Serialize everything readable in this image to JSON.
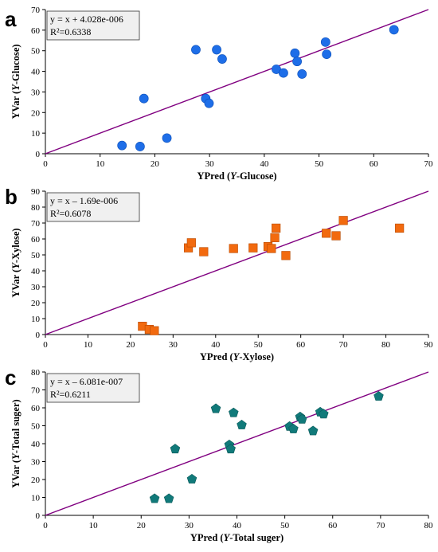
{
  "colors": {
    "regression_line": "#800080",
    "panel_a_marker": "#1e6ee8",
    "panel_b_marker": "#f26a0f",
    "panel_c_marker": "#117a7a",
    "equation_box_fill": "#f0f0f0"
  },
  "chart_data": [
    {
      "type": "scatter",
      "panel_label": "a",
      "marker": "circle",
      "xlabel_pre": "YPred (",
      "xlabel_ital": "Y",
      "xlabel_post": "-Glucose)",
      "ylabel_pre": "YVar (",
      "ylabel_ital": "Y",
      "ylabel_post": "-Glucose)",
      "xlim": [
        0,
        70
      ],
      "ylim": [
        0,
        70
      ],
      "xticks": [
        0,
        10,
        20,
        30,
        40,
        50,
        60,
        70
      ],
      "yticks": [
        0,
        10,
        20,
        30,
        40,
        50,
        60,
        70
      ],
      "equation": "y = x + 4.028e-006",
      "r2": "R²=0.6338",
      "legend_position": "top-left",
      "grid": false,
      "line": [
        [
          0,
          0
        ],
        [
          70,
          70
        ]
      ],
      "points": [
        [
          14,
          4
        ],
        [
          17.3,
          3.5
        ],
        [
          18,
          26.8
        ],
        [
          22.2,
          7.6
        ],
        [
          27.5,
          50.5
        ],
        [
          29.3,
          26.8
        ],
        [
          29.9,
          24.5
        ],
        [
          31.3,
          50.5
        ],
        [
          32.3,
          46
        ],
        [
          42.2,
          41
        ],
        [
          43.5,
          39.2
        ],
        [
          45.6,
          48.8
        ],
        [
          46,
          44.8
        ],
        [
          46.9,
          38.7
        ],
        [
          51.2,
          54.2
        ],
        [
          51.4,
          48.3
        ],
        [
          63.7,
          60.2
        ]
      ]
    },
    {
      "type": "scatter",
      "panel_label": "b",
      "marker": "square",
      "xlabel_pre": "YPred (",
      "xlabel_ital": "Y",
      "xlabel_post": "-Xylose)",
      "ylabel_pre": "YVar (",
      "ylabel_ital": "Y",
      "ylabel_post": "-Xylose)",
      "xlim": [
        0,
        90
      ],
      "ylim": [
        0,
        90
      ],
      "xticks": [
        0,
        10,
        20,
        30,
        40,
        50,
        60,
        70,
        80,
        90
      ],
      "yticks": [
        0,
        10,
        20,
        30,
        40,
        50,
        60,
        70,
        80,
        90
      ],
      "equation": "y = x – 1.69e-006",
      "r2": "R²=0.6078",
      "legend_position": "top-left",
      "grid": false,
      "line": [
        [
          0,
          0
        ],
        [
          90,
          90
        ]
      ],
      "points": [
        [
          22.8,
          5.2
        ],
        [
          24.4,
          3.2
        ],
        [
          25.6,
          2.4
        ],
        [
          33.6,
          54.4
        ],
        [
          34.3,
          57.6
        ],
        [
          37.2,
          52
        ],
        [
          44.2,
          54
        ],
        [
          48.8,
          54.4
        ],
        [
          52.3,
          55.2
        ],
        [
          53.1,
          54
        ],
        [
          53.9,
          60.8
        ],
        [
          54.2,
          66.8
        ],
        [
          56.5,
          49.6
        ],
        [
          66,
          63.6
        ],
        [
          68.3,
          62
        ],
        [
          70,
          71.6
        ],
        [
          83.2,
          66.8
        ]
      ]
    },
    {
      "type": "scatter",
      "panel_label": "c",
      "marker": "pentagon",
      "xlabel_pre": "YPred (",
      "xlabel_ital": "Y",
      "xlabel_post": "-Total suger)",
      "ylabel_pre": "YVar (",
      "ylabel_ital": "Y",
      "ylabel_post": "-Total suger)",
      "xlim": [
        0,
        80
      ],
      "ylim": [
        0,
        80
      ],
      "xticks": [
        0,
        10,
        20,
        30,
        40,
        50,
        60,
        70,
        80
      ],
      "yticks": [
        0,
        10,
        20,
        30,
        40,
        50,
        60,
        70,
        80
      ],
      "equation": "y = x – 6.081e-007",
      "r2": "R²=0.6211",
      "legend_position": "top-left",
      "grid": false,
      "line": [
        [
          0,
          0
        ],
        [
          80,
          80
        ]
      ],
      "points": [
        [
          22.8,
          9.3
        ],
        [
          25.8,
          9.3
        ],
        [
          27.1,
          37
        ],
        [
          30.6,
          20.2
        ],
        [
          35.6,
          59.5
        ],
        [
          38.4,
          39.3
        ],
        [
          38.7,
          37
        ],
        [
          39.3,
          57.2
        ],
        [
          41,
          50.4
        ],
        [
          51,
          49.6
        ],
        [
          51.8,
          48.2
        ],
        [
          53.2,
          54.9
        ],
        [
          53.6,
          53.6
        ],
        [
          55.9,
          47.1
        ],
        [
          57.4,
          57.6
        ],
        [
          58.1,
          56.5
        ],
        [
          69.6,
          66.4
        ]
      ]
    }
  ]
}
